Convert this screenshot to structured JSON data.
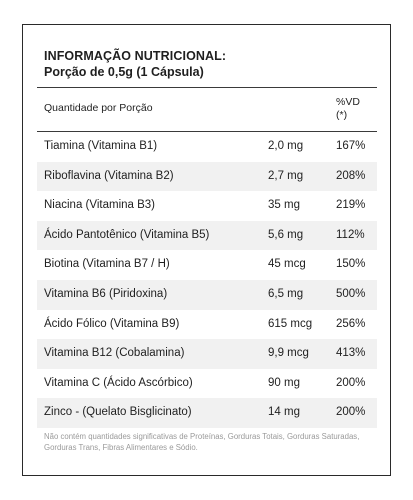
{
  "label": {
    "title": "INFORMAÇÃO NUTRICIONAL:",
    "serving": "Porção de 0,5g (1 Cápsula)",
    "header": {
      "quantity": "Quantidade por Porção",
      "vd_line1": "%VD",
      "vd_line2": "(*)"
    },
    "rows": [
      {
        "name": "Tiamina (Vitamina B1)",
        "qty": "2,0 mg",
        "vd": "167%"
      },
      {
        "name": "Riboflavina (Vitamina B2)",
        "qty": "2,7 mg",
        "vd": "208%"
      },
      {
        "name": "Niacina (Vitamina B3)",
        "qty": "35 mg",
        "vd": "219%"
      },
      {
        "name": "Ácido Pantotênico (Vitamina B5)",
        "qty": "5,6 mg",
        "vd": "112%"
      },
      {
        "name": "Biotina (Vitamina B7 / H)",
        "qty": "45 mcg",
        "vd": "150%"
      },
      {
        "name": "Vitamina B6 (Piridoxina)",
        "qty": "6,5 mg",
        "vd": "500%"
      },
      {
        "name": "Ácido Fólico (Vitamina B9)",
        "qty": "615 mcg",
        "vd": "256%"
      },
      {
        "name": "Vitamina B12 (Cobalamina)",
        "qty": "9,9 mcg",
        "vd": "413%"
      },
      {
        "name": "Vitamina C (Ácido Ascórbico)",
        "qty": "90 mg",
        "vd": "200%"
      },
      {
        "name": "Zinco - (Quelato Bisglicinato)",
        "qty": "14 mg",
        "vd": "200%"
      }
    ],
    "footnote": "Não contém quantidades significativas de Proteínas, Gorduras Totais, Gorduras Saturadas, Gorduras Trans, Fibras Alimentares e Sódio."
  }
}
